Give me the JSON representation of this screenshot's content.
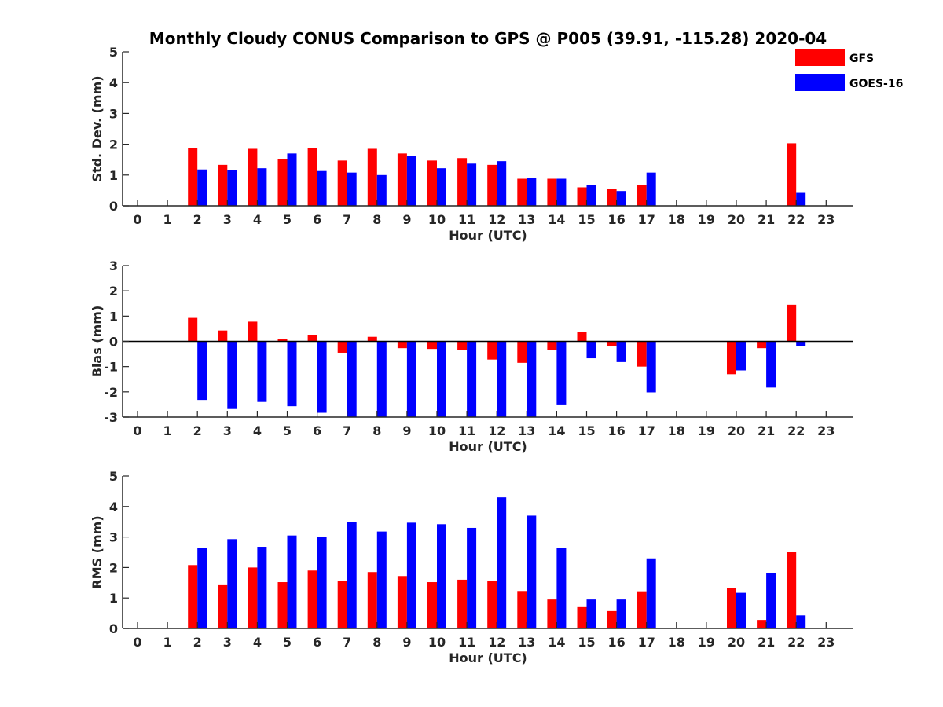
{
  "title": "Monthly Cloudy CONUS Comparison to GPS @ P005 (39.91, -115.28) 2020-04",
  "legend": {
    "placement": "top-right",
    "entries": [
      {
        "name": "GFS",
        "color": "#ff0000"
      },
      {
        "name": "GOES-16",
        "color": "#0000ff"
      }
    ]
  },
  "chart_data": [
    {
      "type": "bar",
      "xlabel": "Hour (UTC)",
      "ylabel": "Std. Dev. (mm)",
      "categories": [
        "0",
        "1",
        "2",
        "3",
        "4",
        "5",
        "6",
        "7",
        "8",
        "9",
        "10",
        "11",
        "12",
        "13",
        "14",
        "15",
        "16",
        "17",
        "18",
        "19",
        "20",
        "21",
        "22",
        "23"
      ],
      "ylim": [
        0,
        5
      ],
      "yticks": [
        "0",
        "1",
        "2",
        "3",
        "4",
        "5"
      ],
      "series": [
        {
          "name": "GFS",
          "color": "#ff0000",
          "values": [
            null,
            null,
            1.88,
            1.33,
            1.85,
            1.52,
            1.88,
            1.47,
            1.85,
            1.7,
            1.47,
            1.55,
            1.33,
            0.88,
            0.88,
            0.6,
            0.55,
            0.68,
            null,
            null,
            null,
            null,
            2.03,
            null
          ]
        },
        {
          "name": "GOES-16",
          "color": "#0000ff",
          "values": [
            null,
            null,
            1.18,
            1.15,
            1.22,
            1.7,
            1.13,
            1.08,
            1.0,
            1.62,
            1.22,
            1.37,
            1.45,
            0.9,
            0.88,
            0.67,
            0.48,
            1.08,
            null,
            null,
            null,
            null,
            0.42,
            null
          ]
        }
      ]
    },
    {
      "type": "bar",
      "xlabel": "Hour (UTC)",
      "ylabel": "Bias (mm)",
      "categories": [
        "0",
        "1",
        "2",
        "3",
        "4",
        "5",
        "6",
        "7",
        "8",
        "9",
        "10",
        "11",
        "12",
        "13",
        "14",
        "15",
        "16",
        "17",
        "18",
        "19",
        "20",
        "21",
        "22",
        "23"
      ],
      "ylim": [
        -3,
        3
      ],
      "yticks": [
        "-3",
        "-2",
        "-1",
        "0",
        "1",
        "2",
        "3"
      ],
      "zero_line": true,
      "series": [
        {
          "name": "GFS",
          "color": "#ff0000",
          "values": [
            null,
            null,
            0.93,
            0.43,
            0.78,
            0.08,
            0.25,
            -0.45,
            0.18,
            -0.27,
            -0.3,
            -0.35,
            -0.72,
            -0.85,
            -0.35,
            0.37,
            -0.18,
            -1.0,
            null,
            null,
            -1.3,
            -0.27,
            1.45,
            null
          ]
        },
        {
          "name": "GOES-16",
          "color": "#0000ff",
          "values": [
            null,
            null,
            -2.32,
            -2.68,
            -2.4,
            -2.57,
            -2.83,
            -3.0,
            -3.0,
            -3.0,
            -3.0,
            -3.0,
            -3.0,
            -3.0,
            -2.5,
            -0.67,
            -0.82,
            -2.02,
            null,
            null,
            -1.15,
            -1.83,
            -0.18,
            null
          ]
        }
      ]
    },
    {
      "type": "bar",
      "xlabel": "Hour (UTC)",
      "ylabel": "RMS (mm)",
      "categories": [
        "0",
        "1",
        "2",
        "3",
        "4",
        "5",
        "6",
        "7",
        "8",
        "9",
        "10",
        "11",
        "12",
        "13",
        "14",
        "15",
        "16",
        "17",
        "18",
        "19",
        "20",
        "21",
        "22",
        "23"
      ],
      "ylim": [
        0,
        5
      ],
      "yticks": [
        "0",
        "1",
        "2",
        "3",
        "4",
        "5"
      ],
      "series": [
        {
          "name": "GFS",
          "color": "#ff0000",
          "values": [
            null,
            null,
            2.08,
            1.42,
            2.0,
            1.52,
            1.9,
            1.55,
            1.85,
            1.72,
            1.52,
            1.6,
            1.55,
            1.23,
            0.95,
            0.7,
            0.57,
            1.22,
            null,
            null,
            1.32,
            0.28,
            2.5,
            null
          ]
        },
        {
          "name": "GOES-16",
          "color": "#0000ff",
          "values": [
            null,
            null,
            2.63,
            2.93,
            2.68,
            3.05,
            3.0,
            3.5,
            3.18,
            3.47,
            3.42,
            3.3,
            4.3,
            3.7,
            2.65,
            0.95,
            0.95,
            2.3,
            null,
            null,
            1.17,
            1.83,
            0.43,
            null
          ]
        }
      ]
    }
  ]
}
